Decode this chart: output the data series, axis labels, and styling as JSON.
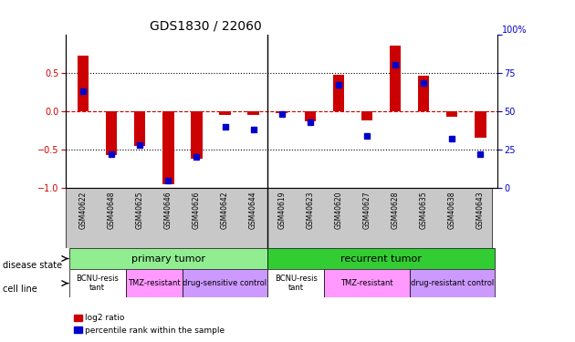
{
  "title": "GDS1830 / 22060",
  "samples": [
    "GSM40622",
    "GSM40648",
    "GSM40625",
    "GSM40646",
    "GSM40626",
    "GSM40642",
    "GSM40644",
    "GSM40619",
    "GSM40623",
    "GSM40620",
    "GSM40627",
    "GSM40628",
    "GSM40635",
    "GSM40638",
    "GSM40643"
  ],
  "log2_ratio": [
    0.72,
    -0.57,
    -0.45,
    -0.95,
    -0.62,
    -0.05,
    -0.05,
    -0.03,
    -0.13,
    0.47,
    -0.12,
    0.85,
    0.46,
    -0.07,
    -0.35
  ],
  "percentile": [
    63,
    22,
    28,
    5,
    20,
    40,
    38,
    48,
    43,
    67,
    34,
    80,
    68,
    32,
    22
  ],
  "ylim": [
    -1,
    1
  ],
  "y2lim": [
    0,
    100
  ],
  "yticks_left": [
    -1,
    -0.5,
    0,
    0.5
  ],
  "y2ticks": [
    0,
    25,
    50,
    75,
    100
  ],
  "disease_state_groups": [
    {
      "label": "primary tumor",
      "start": 0,
      "end": 7,
      "color": "#90EE90"
    },
    {
      "label": "recurrent tumor",
      "start": 7,
      "end": 15,
      "color": "#32CD32"
    }
  ],
  "cell_line_groups": [
    {
      "label": "BCNU-resis\ntant",
      "start": 0,
      "end": 2,
      "color": "#FFFFFF"
    },
    {
      "label": "TMZ-resistant",
      "start": 2,
      "end": 4,
      "color": "#FF99FF"
    },
    {
      "label": "drug-sensitive control",
      "start": 4,
      "end": 7,
      "color": "#CC99FF"
    },
    {
      "label": "BCNU-resis\ntant",
      "start": 7,
      "end": 9,
      "color": "#FFFFFF"
    },
    {
      "label": "TMZ-resistant",
      "start": 9,
      "end": 12,
      "color": "#FF99FF"
    },
    {
      "label": "drug-resistant control",
      "start": 12,
      "end": 15,
      "color": "#CC99FF"
    }
  ],
  "bar_color": "#CC0000",
  "dot_color": "#0000CC",
  "zero_line_color": "#CC0000",
  "background_color": "#FFFFFF"
}
